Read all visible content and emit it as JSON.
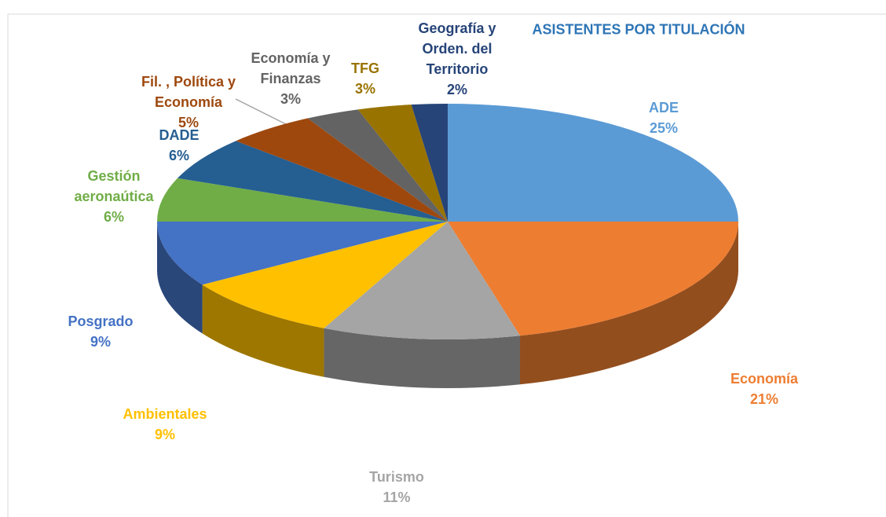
{
  "chart_data": {
    "type": "pie3d",
    "title": "ASISTENTES POR TITULACIÓN",
    "categories": [
      "ADE",
      "Economía",
      "Turismo",
      "Ambientales",
      "Posgrado",
      "Gestión aeronaútica",
      "DADE",
      "Fil. , Política y Economía",
      "Economía y Finanzas",
      "TFG",
      "Geografía y Orden. del Territorio"
    ],
    "values": [
      25,
      21,
      11,
      9,
      9,
      6,
      6,
      5,
      3,
      3,
      2
    ],
    "value_labels": [
      "25%",
      "21%",
      "11%",
      "9%",
      "9%",
      "6%",
      "6%",
      "5%",
      "3%",
      "3%",
      "2%"
    ],
    "colors": [
      "#5b9bd5",
      "#ed7d31",
      "#a5a5a5",
      "#ffc000",
      "#4472c4",
      "#70ad47",
      "#255e91",
      "#9e480e",
      "#636363",
      "#997300",
      "#264478"
    ]
  }
}
